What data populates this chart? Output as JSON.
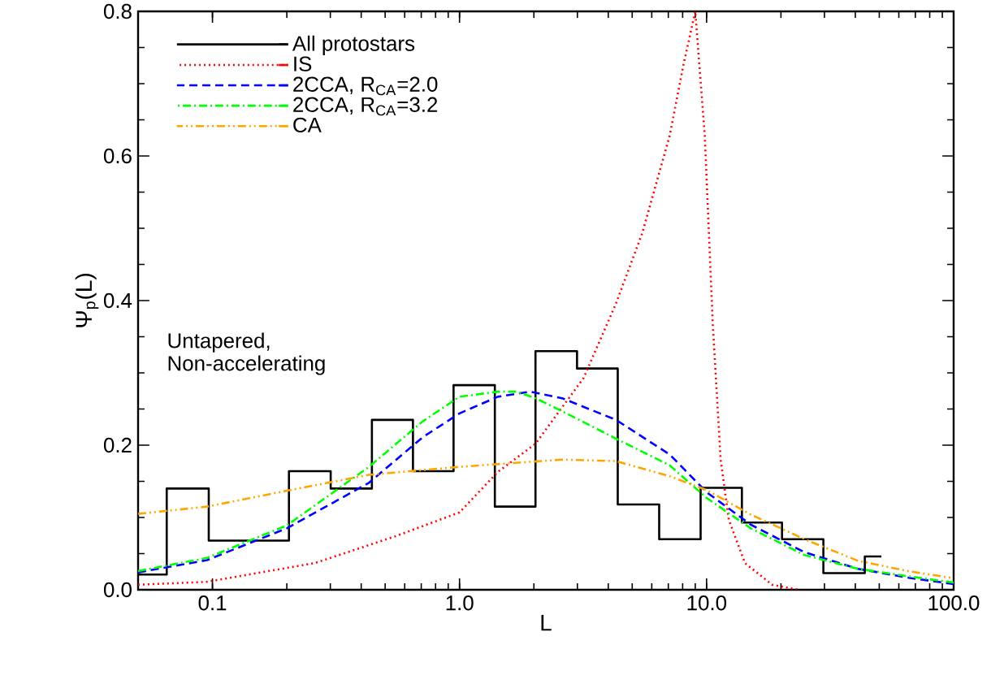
{
  "chart_data": {
    "type": "histogram",
    "xlabel": "L",
    "ylabel": "Ψ$_{p}$(L)",
    "log": "x",
    "xlim": [
      0.05,
      100
    ],
    "ylim": [
      0,
      0.8
    ],
    "xticks": [
      {
        "value": 0.1,
        "label": "0.1"
      },
      {
        "value": 1,
        "label": "1.0"
      },
      {
        "value": 10,
        "label": "10.0"
      },
      {
        "value": 100,
        "label": "100.0"
      }
    ],
    "yticks": [
      {
        "value": 0,
        "label": "0.0"
      },
      {
        "value": 0.2,
        "label": "0.2"
      },
      {
        "value": 0.4,
        "label": "0.4"
      },
      {
        "value": 0.6,
        "label": "0.6"
      },
      {
        "value": 0.8,
        "label": "0.8"
      }
    ],
    "legend": "top left",
    "grid": false,
    "annotations": [
      "Untapered, Non-accelerating"
    ],
    "series": [
      {
        "name": "All protostars",
        "type": "histogram",
        "color": "#000000",
        "line_style": "solid",
        "bins": [
          0.05,
          0.0653,
          0.0966,
          0.14,
          0.204,
          0.301,
          0.442,
          0.648,
          0.946,
          1.39,
          2.03,
          2.99,
          4.37,
          6.43,
          9.46,
          13.9,
          20.2,
          29.7,
          43.7,
          51.0
        ],
        "values": [
          0.021,
          0.14,
          0.068,
          0.068,
          0.164,
          0.14,
          0.235,
          0.164,
          0.283,
          0.115,
          0.33,
          0.306,
          0.118,
          0.07,
          0.141,
          0.093,
          0.07,
          0.023,
          0.046
        ]
      },
      {
        "name": "IS",
        "type": "line",
        "color": "#ff0000",
        "line_style": "dotted",
        "x": [
          0.05,
          0.095,
          0.26,
          0.55,
          1.0,
          1.43,
          2.03,
          3.18,
          4.3,
          5.5,
          7.1,
          8.06,
          9.0,
          9.83,
          10.6,
          11.4,
          12.3,
          14.3,
          18.4,
          23.6
        ],
        "values": [
          0.007,
          0.011,
          0.037,
          0.074,
          0.107,
          0.163,
          0.202,
          0.293,
          0.396,
          0.494,
          0.629,
          0.726,
          0.8,
          0.629,
          0.366,
          0.18,
          0.097,
          0.037,
          0.007,
          0.0
        ]
      },
      {
        "name": "2CCA, R$_{CA}$=2.0",
        "type": "line",
        "color": "#0000ff",
        "line_style": "dashed",
        "x": [
          0.05,
          0.095,
          0.2,
          0.43,
          0.71,
          1.0,
          1.43,
          1.93,
          2.6,
          4.3,
          7.1,
          10,
          15.1,
          24.9,
          41,
          67.5,
          100
        ],
        "values": [
          0.024,
          0.041,
          0.085,
          0.148,
          0.211,
          0.244,
          0.267,
          0.274,
          0.265,
          0.235,
          0.187,
          0.135,
          0.09,
          0.052,
          0.029,
          0.016,
          0.008
        ]
      },
      {
        "name": "2CCA, R$_{CA}$=3.2",
        "type": "line",
        "color": "#00ff00",
        "line_style": "dash-dot",
        "x": [
          0.05,
          0.095,
          0.2,
          0.43,
          0.71,
          1.0,
          1.43,
          1.7,
          2.03,
          2.6,
          4.3,
          7.1,
          10,
          15.1,
          24.9,
          41,
          67.5,
          100
        ],
        "values": [
          0.026,
          0.044,
          0.089,
          0.17,
          0.233,
          0.267,
          0.274,
          0.274,
          0.265,
          0.247,
          0.209,
          0.172,
          0.127,
          0.085,
          0.048,
          0.029,
          0.018,
          0.01
        ]
      },
      {
        "name": "CA",
        "type": "line",
        "color": "#ffa500",
        "line_style": "dash-dot-dot",
        "x": [
          0.05,
          0.095,
          0.2,
          0.43,
          1.0,
          1.93,
          2.6,
          4.3,
          7.1,
          10,
          15.1,
          24.9,
          41,
          67.5,
          100
        ],
        "values": [
          0.105,
          0.115,
          0.137,
          0.159,
          0.17,
          0.177,
          0.18,
          0.178,
          0.157,
          0.138,
          0.104,
          0.07,
          0.04,
          0.025,
          0.016
        ]
      }
    ]
  }
}
